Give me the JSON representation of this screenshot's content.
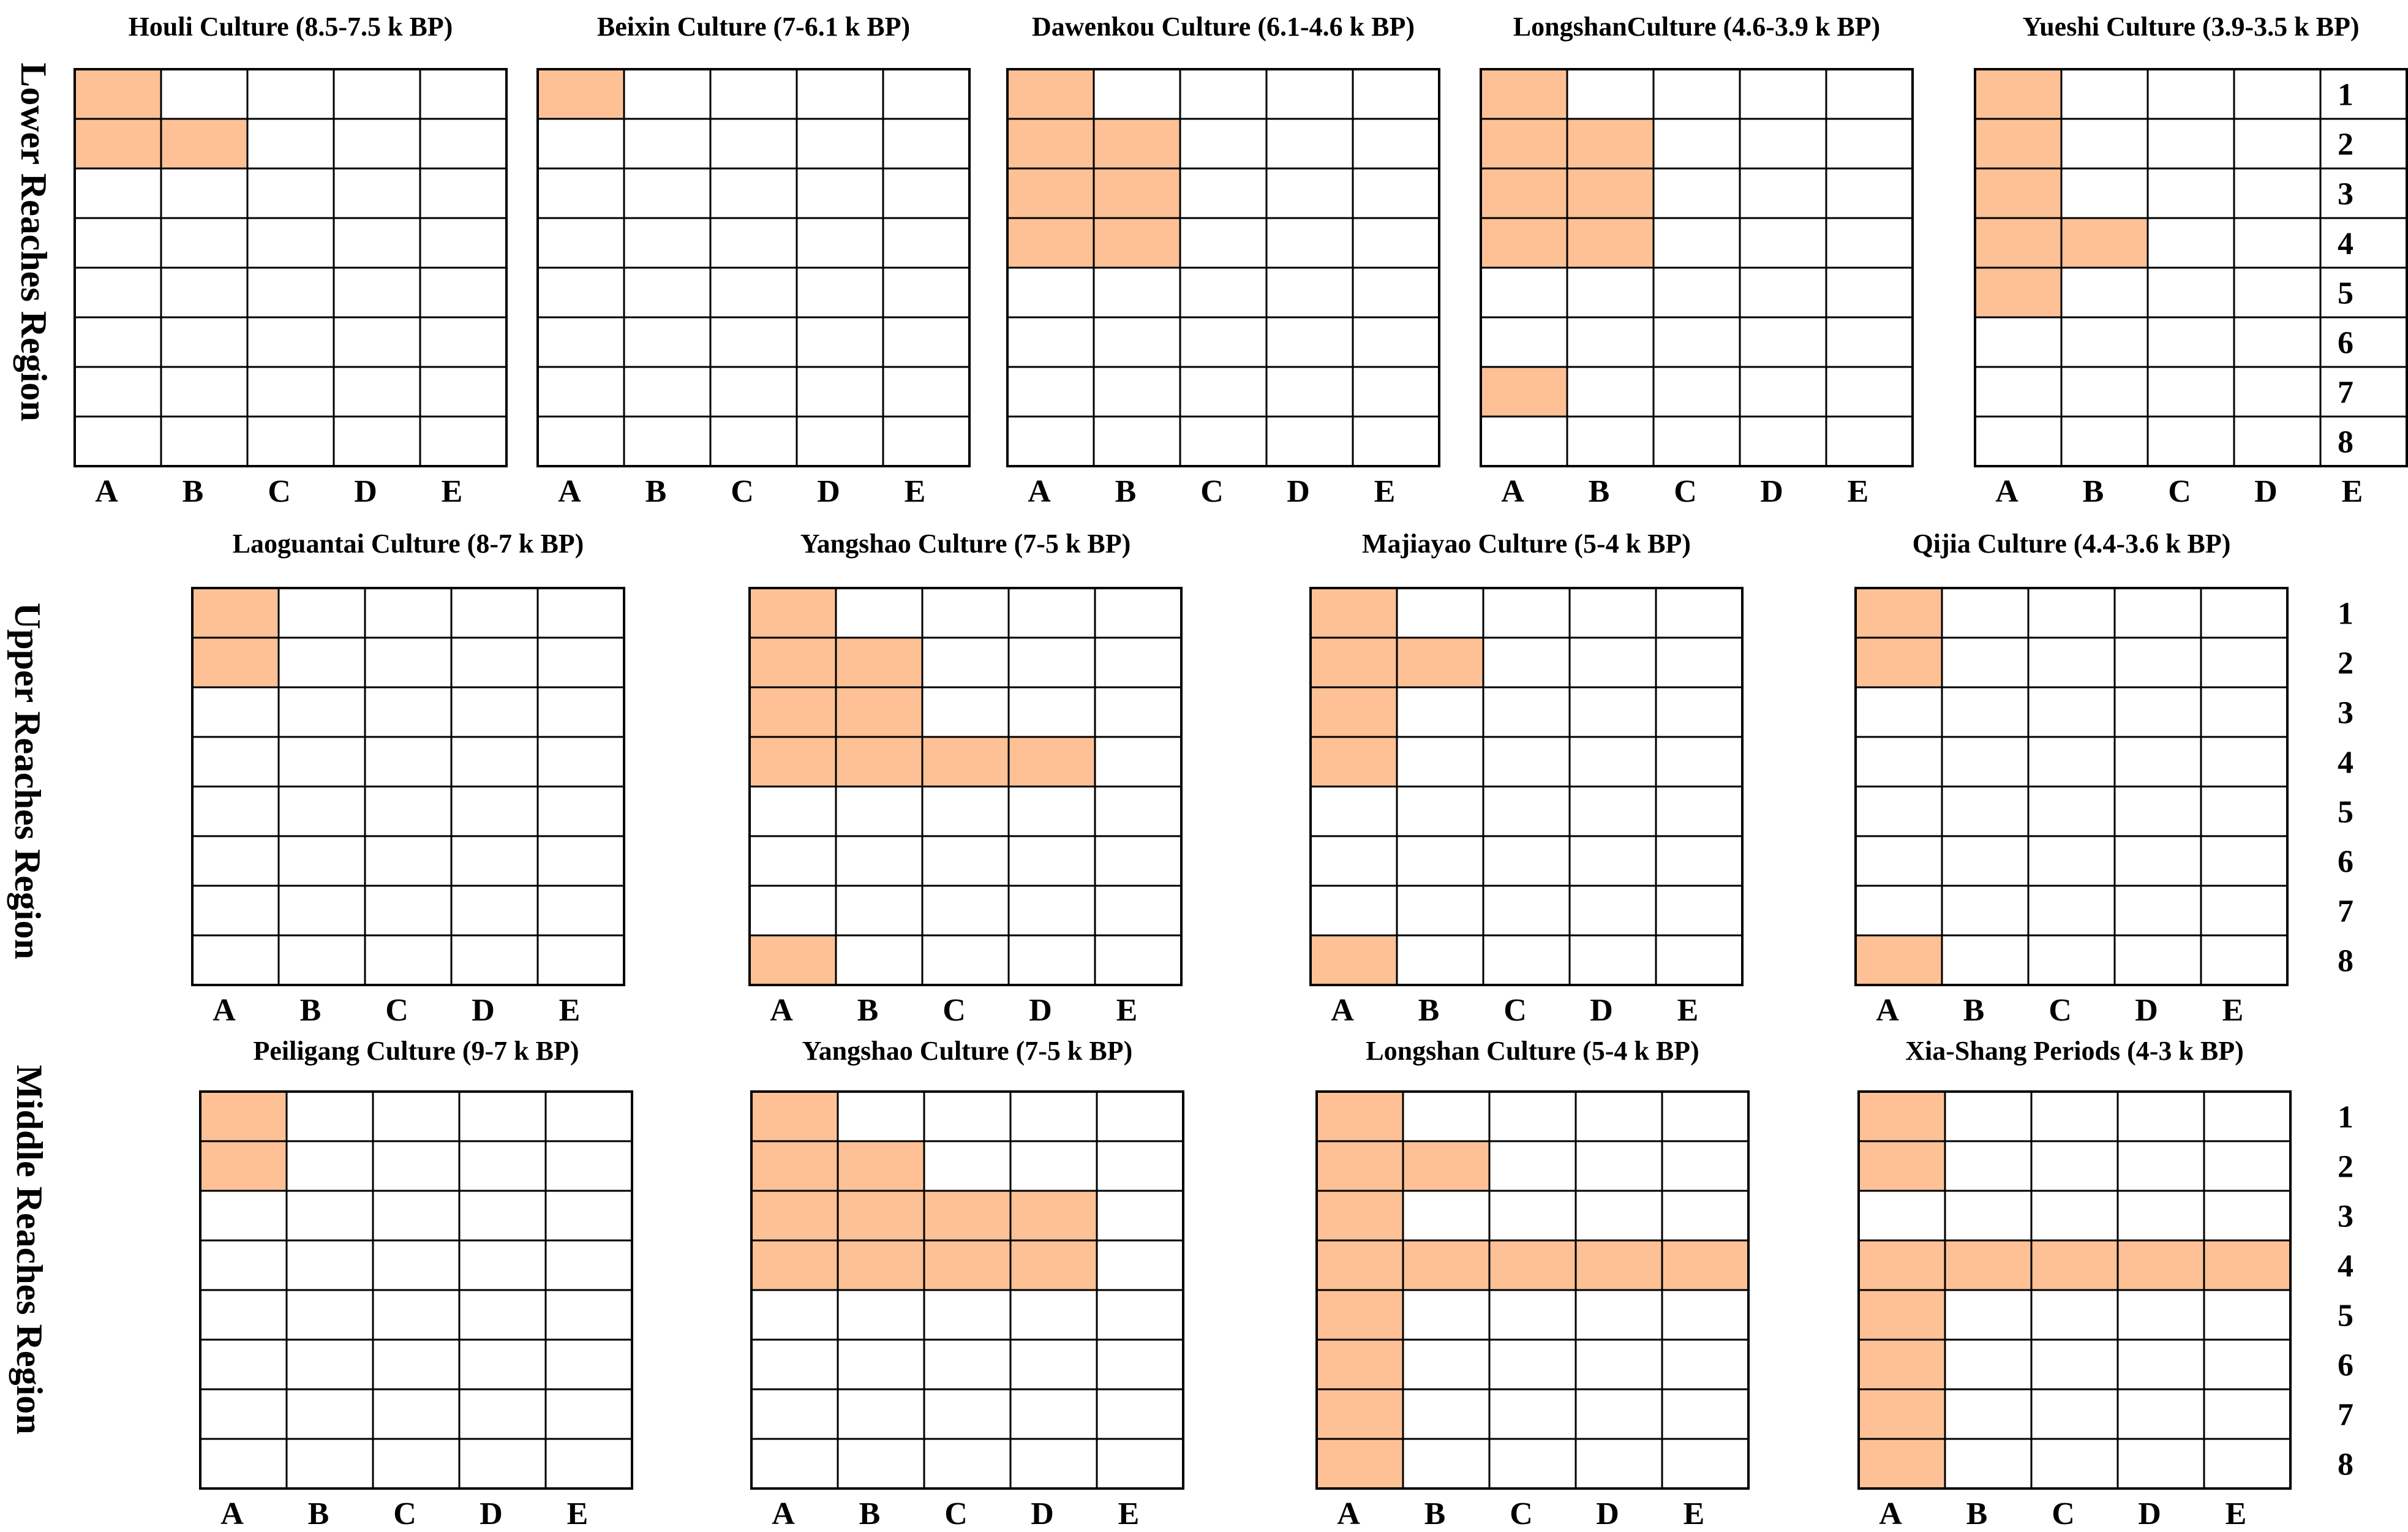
{
  "colors": {
    "filled": "#FDC195",
    "empty": "#FFFFFF",
    "grid_line": "#000000"
  },
  "columns": [
    "A",
    "B",
    "C",
    "D",
    "E"
  ],
  "row_numbers": [
    "1",
    "2",
    "3",
    "4",
    "5",
    "6",
    "7",
    "8"
  ],
  "regions": [
    {
      "label": "Lower Reaches Region",
      "cultures": [
        {
          "title": "Houli Culture (8.5-7.5 k BP)",
          "filled": [
            "A1",
            "A2",
            "B2"
          ]
        },
        {
          "title": "Beixin Culture (7-6.1 k BP)",
          "filled": [
            "A1"
          ]
        },
        {
          "title": "Dawenkou Culture (6.1-4.6 k BP)",
          "filled": [
            "A1",
            "A2",
            "B2",
            "A3",
            "B3",
            "A4",
            "B4"
          ]
        },
        {
          "title": "LongshanCulture (4.6-3.9 k BP)",
          "filled": [
            "A1",
            "A2",
            "B2",
            "A3",
            "B3",
            "A4",
            "B4",
            "A7"
          ]
        },
        {
          "title": "Yueshi Culture (3.9-3.5 k BP)",
          "filled": [
            "A1",
            "A2",
            "A3",
            "A4",
            "B4",
            "A5"
          ]
        }
      ]
    },
    {
      "label": "Upper Reaches Region",
      "cultures": [
        {
          "title": "Laoguantai Culture (8-7 k BP)",
          "filled": [
            "A1",
            "A2"
          ]
        },
        {
          "title": "Yangshao Culture (7-5 k BP)",
          "filled": [
            "A1",
            "A2",
            "B2",
            "A3",
            "B3",
            "A4",
            "B4",
            "C4",
            "D4",
            "A8"
          ]
        },
        {
          "title": "Majiayao Culture (5-4 k BP)",
          "filled": [
            "A1",
            "A2",
            "B2",
            "A3",
            "A4",
            "A8"
          ]
        },
        {
          "title": "Qijia Culture (4.4-3.6 k BP)",
          "filled": [
            "A1",
            "A2",
            "A8"
          ]
        }
      ]
    },
    {
      "label": "Middle Reaches Region",
      "cultures": [
        {
          "title": "Peiligang Culture (9-7 k BP)",
          "filled": [
            "A1",
            "A2"
          ]
        },
        {
          "title": "Yangshao Culture (7-5 k BP)",
          "filled": [
            "A1",
            "A2",
            "B2",
            "A3",
            "B3",
            "C3",
            "D3",
            "A4",
            "B4",
            "C4",
            "D4"
          ]
        },
        {
          "title": "Longshan Culture (5-4 k BP)",
          "filled": [
            "A1",
            "A2",
            "B2",
            "A3",
            "A4",
            "B4",
            "C4",
            "D4",
            "E4",
            "A5",
            "A6",
            "A7",
            "A8"
          ]
        },
        {
          "title": "Xia-Shang Periods (4-3 k BP)",
          "filled": [
            "A1",
            "A2",
            "A4",
            "B4",
            "C4",
            "D4",
            "E4",
            "A5",
            "A6",
            "A7",
            "A8"
          ]
        }
      ]
    }
  ]
}
